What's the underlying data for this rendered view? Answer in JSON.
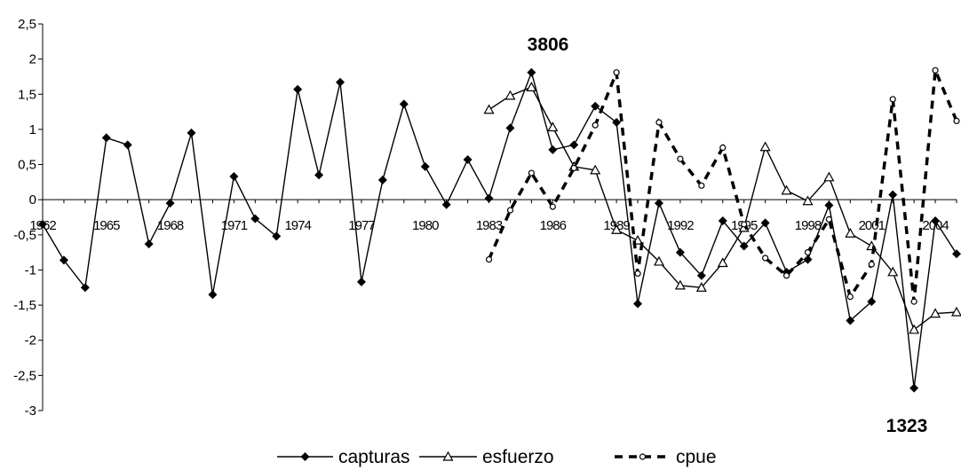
{
  "chart_data": {
    "type": "line",
    "x": [
      1962,
      1963,
      1964,
      1965,
      1966,
      1967,
      1968,
      1969,
      1970,
      1971,
      1972,
      1973,
      1974,
      1975,
      1976,
      1977,
      1978,
      1979,
      1980,
      1981,
      1982,
      1983,
      1984,
      1985,
      1986,
      1987,
      1988,
      1989,
      1990,
      1991,
      1992,
      1993,
      1994,
      1995,
      1996,
      1997,
      1998,
      1999,
      2000,
      2001,
      2002,
      2003,
      2004,
      2005
    ],
    "xticks": [
      "1962",
      "1965",
      "1968",
      "1971",
      "1974",
      "1977",
      "1980",
      "1983",
      "1986",
      "1989",
      "1992",
      "1995",
      "1998",
      "2001",
      "2004"
    ],
    "ylim": [
      -3,
      2.5
    ],
    "yticks": [
      "2,5",
      "2",
      "1,5",
      "1",
      "0,5",
      "0",
      "-0,5",
      "-1",
      "-1,5",
      "-2",
      "-2,5",
      "-3"
    ],
    "series": [
      {
        "name": "capturas",
        "marker": "diamond",
        "line": "solid",
        "values": [
          -0.35,
          -0.86,
          -1.25,
          0.88,
          0.78,
          -0.63,
          -0.05,
          0.95,
          -1.35,
          0.33,
          -0.27,
          -0.52,
          1.57,
          0.35,
          1.67,
          -1.17,
          0.28,
          1.36,
          0.47,
          -0.07,
          0.57,
          0.02,
          1.02,
          1.81,
          0.71,
          0.78,
          1.33,
          1.1,
          -1.48,
          -0.05,
          -0.75,
          -1.08,
          -0.3,
          -0.66,
          -0.33,
          -1.03,
          -0.85,
          -0.08,
          -1.72,
          -1.45,
          0.07,
          -2.68,
          -0.3,
          -0.77
        ]
      },
      {
        "name": "esfuerzo",
        "marker": "triangle",
        "line": "solid",
        "values": [
          null,
          null,
          null,
          null,
          null,
          null,
          null,
          null,
          null,
          null,
          null,
          null,
          null,
          null,
          null,
          null,
          null,
          null,
          null,
          null,
          null,
          1.28,
          1.48,
          1.6,
          1.03,
          0.47,
          0.42,
          -0.43,
          -0.58,
          -0.88,
          -1.22,
          -1.25,
          -0.9,
          -0.4,
          0.75,
          0.13,
          -0.02,
          0.32,
          -0.48,
          -0.66,
          -1.03,
          -1.85,
          -1.62,
          -1.6
        ]
      },
      {
        "name": "cpue",
        "marker": "circle",
        "line": "dashed",
        "values": [
          null,
          null,
          null,
          null,
          null,
          null,
          null,
          null,
          null,
          null,
          null,
          null,
          null,
          null,
          null,
          null,
          null,
          null,
          null,
          null,
          null,
          -0.85,
          -0.15,
          0.38,
          -0.1,
          0.45,
          1.06,
          1.81,
          -1.05,
          1.1,
          0.58,
          0.2,
          0.74,
          -0.35,
          -0.83,
          -1.08,
          -0.75,
          -0.28,
          -1.38,
          -0.92,
          1.43,
          -1.45,
          1.84,
          1.12
        ]
      }
    ],
    "annotations": [
      "3806",
      "1323"
    ],
    "legend": "bottom",
    "grid": false
  }
}
